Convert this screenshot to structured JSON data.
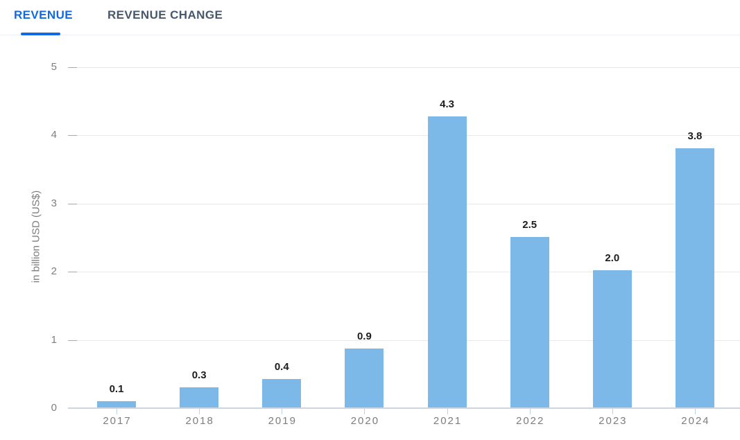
{
  "tabs": [
    {
      "label": "REVENUE",
      "active": true
    },
    {
      "label": "REVENUE CHANGE",
      "active": false
    }
  ],
  "chart_data": {
    "type": "bar",
    "title": "",
    "categories": [
      "2017",
      "2018",
      "2019",
      "2020",
      "2021",
      "2022",
      "2023",
      "2024"
    ],
    "values": [
      0.1,
      0.3,
      0.4,
      0.9,
      4.3,
      2.5,
      2.0,
      3.8
    ],
    "value_labels": [
      "0.1",
      "0.3",
      "0.4",
      "0.9",
      "4.3",
      "2.5",
      "2.0",
      "3.8"
    ],
    "rendered_values": [
      0.1,
      0.3,
      0.43,
      0.87,
      4.27,
      2.51,
      2.02,
      3.81
    ],
    "xlabel": "",
    "ylabel": "in billion USD (US$)",
    "ylim": [
      0,
      5
    ],
    "yticks": [
      0,
      1,
      2,
      3,
      4,
      5
    ],
    "grid": "horizontal",
    "legend": "none"
  },
  "colors": {
    "accent": "#1169e4",
    "tab_inactive": "#47586b",
    "separator": "#edf1f7",
    "bar": "#7cb8e8",
    "grid": "#e8e8e8",
    "grid_dash": "#a8a8a8",
    "axis_line": "#ccd5e5",
    "xtick": "#bdd3ec",
    "axis_text": "#7d7d7d",
    "value_text": "#1d1d1d"
  }
}
